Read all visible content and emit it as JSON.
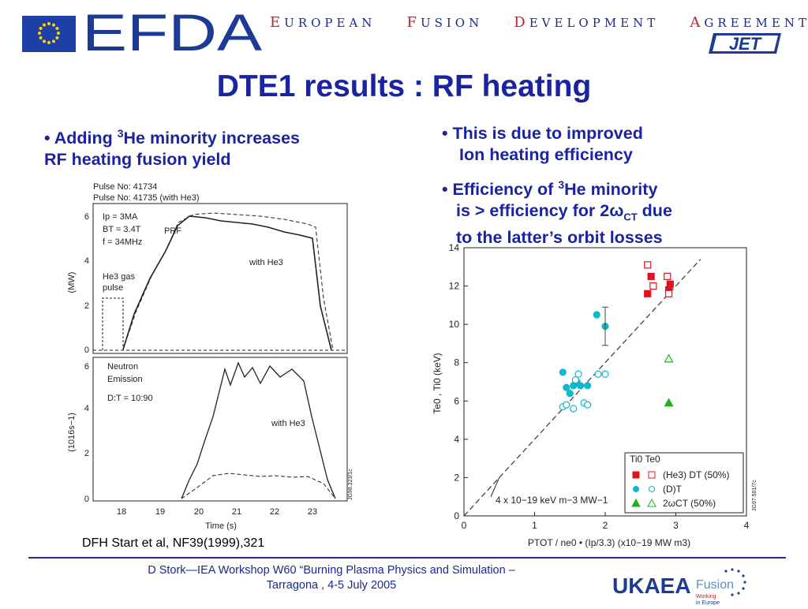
{
  "header": {
    "efda_logo_text": "EFDA",
    "org_name_parts": [
      {
        "cap": "E",
        "rest": "UROPEAN"
      },
      {
        "cap": "F",
        "rest": "USION"
      },
      {
        "cap": "D",
        "rest": "EVELOPMENT"
      },
      {
        "cap": "A",
        "rest": "GREEMENT"
      }
    ],
    "jet_logo_text": "JET",
    "flag_icon": "eu-flag-icon"
  },
  "title": "DTE1 results : RF heating",
  "left_bullet": {
    "bullet": "•",
    "pre": "Adding ",
    "sup": "3",
    "post": "He minority increases",
    "line2": "RF heating fusion yield"
  },
  "right_bullets": [
    {
      "bullet": "•",
      "line1": "This is due to improved",
      "line2": "Ion heating efficiency"
    },
    {
      "bullet": "•",
      "pre": " Efficiency of ",
      "sup": "3",
      "post": "He minority",
      "line2_pre": "is > efficiency for 2",
      "line2_omega": "ω",
      "line2_sub": "CT",
      "line2_post": " due",
      "line3": "to the latter’s orbit losses"
    }
  ],
  "left_figure": {
    "pulse_lines": [
      "Pulse No: 41734",
      "Pulse No: 41735 (with He3)"
    ],
    "top_panel": {
      "ylabel": "(MW)",
      "yticks": [
        "0",
        "2",
        "4",
        "6"
      ],
      "params": [
        "Ip = 3MA",
        "BT = 3.4T",
        "f = 34MHz"
      ],
      "prf_label": "PRF",
      "with_he_label": "with He3",
      "gas_label_1": "He3 gas",
      "gas_label_2": "pulse"
    },
    "bottom_panel": {
      "ylabel": "(1016s−1)",
      "yticks": [
        "0",
        "2",
        "4",
        "6"
      ],
      "label1": "Neutron",
      "label2": "Emission",
      "label3": "D:T = 10:90",
      "with_he_label": "with He3",
      "xticks": [
        "18",
        "19",
        "20",
        "21",
        "22",
        "23"
      ],
      "xlabel": "Time (s)"
    },
    "ref_code": "JG98.323/1c"
  },
  "chart_data": {
    "type": "scatter",
    "xlabel": "PTOT / ne0 • (Ip/3.3) (x10−19 MW m3)",
    "ylabel": "Te0 , Ti0 (keV)",
    "xlim": [
      0,
      4
    ],
    "ylim": [
      0,
      14
    ],
    "xticks": [
      "0",
      "1",
      "2",
      "3",
      "4"
    ],
    "yticks": [
      "0",
      "2",
      "4",
      "6",
      "8",
      "10",
      "12",
      "14"
    ],
    "fit_line_label": "4 x 10−19 keV m−3 MW−1",
    "legend_header": "Ti0 Te0",
    "legend_position": "bottom-right",
    "series": [
      {
        "name": "(He3) DT (50%)",
        "color": "#e0141e",
        "marker": "square",
        "ti0": [
          [
            2.6,
            11.6
          ],
          [
            2.65,
            12.5
          ],
          [
            2.9,
            11.8
          ],
          [
            2.92,
            12.1
          ]
        ],
        "te0": [
          [
            2.6,
            13.1
          ],
          [
            2.68,
            12.0
          ],
          [
            2.88,
            12.5
          ],
          [
            2.9,
            11.6
          ]
        ]
      },
      {
        "name": "(D)T",
        "color": "#10b8c8",
        "marker": "circle",
        "ti0": [
          [
            1.4,
            7.5
          ],
          [
            1.45,
            6.7
          ],
          [
            1.5,
            6.4
          ],
          [
            1.55,
            6.8
          ],
          [
            1.6,
            7.0
          ],
          [
            1.65,
            6.8
          ],
          [
            1.75,
            6.8
          ],
          [
            1.88,
            10.5
          ],
          [
            2.0,
            9.9
          ]
        ],
        "te0": [
          [
            1.4,
            5.7
          ],
          [
            1.45,
            5.8
          ],
          [
            1.55,
            5.6
          ],
          [
            1.58,
            7.1
          ],
          [
            1.62,
            7.4
          ],
          [
            1.7,
            5.9
          ],
          [
            1.75,
            5.8
          ],
          [
            1.9,
            7.4
          ],
          [
            2.0,
            7.4
          ]
        ]
      },
      {
        "name": "2ωCT (50%)",
        "color": "#20b020",
        "marker": "triangle",
        "ti0": [
          [
            2.9,
            5.9
          ]
        ],
        "te0": [
          [
            2.9,
            8.2
          ]
        ]
      }
    ],
    "error_bar": {
      "x": 2.0,
      "y": 9.9,
      "low": 8.9,
      "high": 10.9
    },
    "ref_code": "JG97.501/7c"
  },
  "citation": "DFH Start et al, NF39(1999),321",
  "footer": {
    "line1": "D Stork—IEA Workshop W60 “Burning Plasma Physics and Simulation –",
    "line2": "Tarragona , 4-5 July 2005"
  },
  "ukaea_logo": {
    "main": "UKAEA",
    "fusion": "Fusion",
    "tag1": "Working",
    "tag2": "in Europe"
  }
}
